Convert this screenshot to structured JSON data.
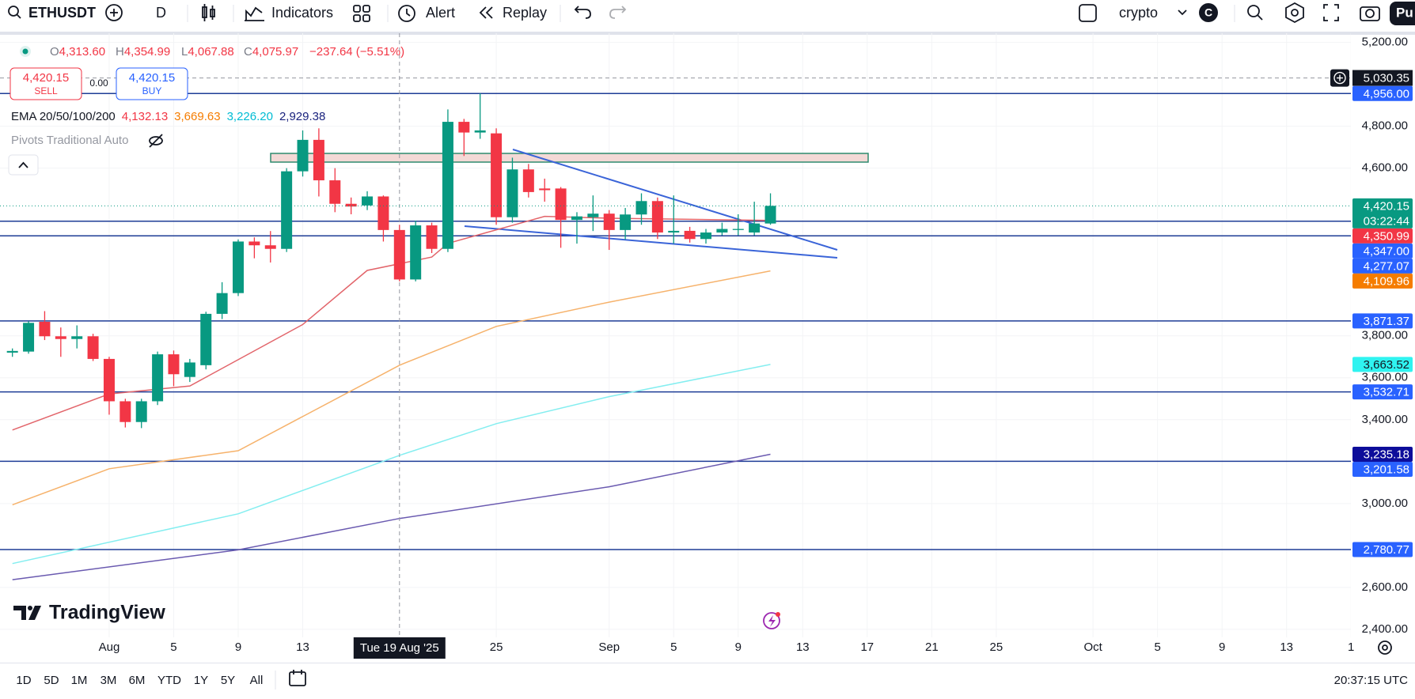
{
  "toolbar": {
    "symbol": "ETHUSDT",
    "interval": "D",
    "indicators": "Indicators",
    "alert": "Alert",
    "replay": "Replay",
    "layout": "crypto",
    "avatar": "C",
    "publish": "Pu"
  },
  "legend": {
    "ohlc": [
      {
        "key": "O",
        "value": "4,313.60"
      },
      {
        "key": "H",
        "value": "4,354.99"
      },
      {
        "key": "L",
        "value": "4,067.88"
      },
      {
        "key": "C",
        "value": "4,075.97"
      }
    ],
    "change": "−237.64 (−5.51%)",
    "sell": {
      "price": "4,420.15",
      "label": "SELL"
    },
    "spread": "0.00",
    "buy": {
      "price": "4,420.15",
      "label": "BUY"
    },
    "ema": {
      "label": "EMA 20/50/100/200",
      "values": [
        {
          "text": "4,132.13",
          "color": "#f23645"
        },
        {
          "text": "3,669.63",
          "color": "#f57c00"
        },
        {
          "text": "3,226.20",
          "color": "#00bcd4"
        },
        {
          "text": "2,929.38",
          "color": "#1a237e"
        }
      ]
    },
    "pivots": "Pivots Traditional Auto"
  },
  "logo": "TradingView",
  "chart_data": {
    "type": "candlestick",
    "x": [
      "2025-07-26",
      "2025-07-27",
      "2025-07-28",
      "2025-07-29",
      "2025-07-30",
      "2025-07-31",
      "2025-08-01",
      "2025-08-02",
      "2025-08-03",
      "2025-08-04",
      "2025-08-05",
      "2025-08-06",
      "2025-08-07",
      "2025-08-08",
      "2025-08-09",
      "2025-08-10",
      "2025-08-11",
      "2025-08-12",
      "2025-08-13",
      "2025-08-14",
      "2025-08-15",
      "2025-08-16",
      "2025-08-17",
      "2025-08-18",
      "2025-08-19",
      "2025-08-20",
      "2025-08-21",
      "2025-08-22",
      "2025-08-23",
      "2025-08-24",
      "2025-08-25",
      "2025-08-26",
      "2025-08-27",
      "2025-08-28",
      "2025-08-29",
      "2025-08-30",
      "2025-08-31",
      "2025-09-01",
      "2025-09-02",
      "2025-09-03",
      "2025-09-04",
      "2025-09-05",
      "2025-09-06",
      "2025-09-07",
      "2025-09-08",
      "2025-09-09",
      "2025-09-10",
      "2025-09-11"
    ],
    "open": [
      3720,
      3725,
      3867,
      3798,
      3785,
      3798,
      3690,
      3488,
      3389,
      3488,
      3712,
      3604,
      3660,
      3905,
      4004,
      4250,
      4232,
      4215,
      4585,
      4735,
      4542,
      4430,
      4422,
      4465,
      4305,
      4069,
      4327,
      4215,
      4821,
      4770,
      4766,
      4366,
      4594,
      4503,
      4503,
      4353,
      4366,
      4383,
      4305,
      4379,
      4443,
      4293,
      4301,
      4262,
      4293,
      4305,
      4293,
      4336
    ],
    "high": [
      3740,
      3870,
      3918,
      3840,
      3850,
      3810,
      3700,
      3500,
      3500,
      3725,
      3730,
      3690,
      3915,
      4056,
      4260,
      4270,
      4300,
      4600,
      4780,
      4790,
      4600,
      4460,
      4490,
      4470,
      4330,
      4350,
      4340,
      4880,
      4835,
      4956,
      4790,
      4650,
      4620,
      4550,
      4510,
      4390,
      4470,
      4400,
      4410,
      4480,
      4460,
      4470,
      4320,
      4310,
      4340,
      4380,
      4440,
      4480
    ],
    "low": [
      3700,
      3715,
      3780,
      3700,
      3740,
      3680,
      3424,
      3363,
      3360,
      3470,
      3560,
      3580,
      3640,
      3880,
      3990,
      4170,
      4150,
      4200,
      4560,
      4465,
      4390,
      4380,
      4400,
      4250,
      4060,
      4060,
      4195,
      4200,
      4658,
      4740,
      4330,
      4340,
      4460,
      4440,
      4220,
      4240,
      4300,
      4210,
      4260,
      4330,
      4262,
      4240,
      4245,
      4240,
      4280,
      4280,
      4280,
      4330
    ],
    "close": [
      3728,
      3862,
      3798,
      3785,
      3798,
      3690,
      3488,
      3389,
      3488,
      3712,
      3617,
      3673,
      3905,
      4004,
      4250,
      4232,
      4215,
      4585,
      4735,
      4542,
      4430,
      4417,
      4465,
      4305,
      4069,
      4327,
      4215,
      4821,
      4770,
      4780,
      4366,
      4594,
      4486,
      4495,
      4353,
      4370,
      4383,
      4305,
      4379,
      4443,
      4293,
      4301,
      4262,
      4293,
      4310,
      4310,
      4336,
      4420.15
    ],
    "up_color": "#089981",
    "down_color": "#f23645",
    "xlim": [
      "2025-07-25",
      "2025-10-18"
    ],
    "ylim": [
      2400,
      5200
    ],
    "xticks": [
      {
        "value": "2025-08-01",
        "label": "Aug"
      },
      {
        "value": "2025-08-05",
        "label": "5"
      },
      {
        "value": "2025-08-09",
        "label": "9"
      },
      {
        "value": "2025-08-13",
        "label": "13"
      },
      {
        "value": "2025-08-25",
        "label": "25"
      },
      {
        "value": "2025-09-01",
        "label": "Sep"
      },
      {
        "value": "2025-09-05",
        "label": "5"
      },
      {
        "value": "2025-09-09",
        "label": "9"
      },
      {
        "value": "2025-09-13",
        "label": "13"
      },
      {
        "value": "2025-09-17",
        "label": "17"
      },
      {
        "value": "2025-09-21",
        "label": "21"
      },
      {
        "value": "2025-09-25",
        "label": "25"
      },
      {
        "value": "2025-10-01",
        "label": "Oct"
      },
      {
        "value": "2025-10-05",
        "label": "5"
      },
      {
        "value": "2025-10-09",
        "label": "9"
      },
      {
        "value": "2025-10-13",
        "label": "13"
      },
      {
        "value": "2025-10-17",
        "label": "1"
      }
    ],
    "yticks": [
      {
        "value": 5200,
        "label": "5,200.00"
      },
      {
        "value": 4800,
        "label": "4,800.00"
      },
      {
        "value": 4600,
        "label": "4,600.00"
      },
      {
        "value": 3800,
        "label": "3,800.00"
      },
      {
        "value": 3600,
        "label": "3,600.00"
      },
      {
        "value": 3400,
        "label": "3,400.00"
      },
      {
        "value": 3000,
        "label": "3,000.00"
      },
      {
        "value": 2600,
        "label": "2,600.00"
      },
      {
        "value": 2400,
        "label": "2,400.00"
      }
    ],
    "crosshair": {
      "x": {
        "value": "2025-08-19",
        "label": "Tue 19 Aug '25"
      },
      "y": {
        "value": 5030.35,
        "label": "5,030.35"
      }
    },
    "levels": [
      4956,
      4347,
      4277.07,
      3871.37,
      3532.71,
      3201.58,
      2780.77
    ],
    "level_color": "#1e3c96",
    "ema": [
      {
        "color": "#e2646a",
        "x": [
          "2025-07-26",
          "2025-08-01",
          "2025-08-06",
          "2025-08-13",
          "2025-08-17",
          "2025-08-21",
          "2025-08-22",
          "2025-08-28",
          "2025-09-01",
          "2025-09-11"
        ],
        "values": [
          3351,
          3523,
          3561,
          3854,
          4112,
          4176,
          4241,
          4370,
          4361,
          4350.99
        ]
      },
      {
        "color": "#f6b26b",
        "x": [
          "2025-07-26",
          "2025-08-01",
          "2025-08-09",
          "2025-08-19",
          "2025-08-25",
          "2025-09-01",
          "2025-09-11"
        ],
        "values": [
          2994,
          3166,
          3252,
          3660,
          3845,
          3961,
          4109.96
        ]
      },
      {
        "color": "#84eef0",
        "x": [
          "2025-07-26",
          "2025-08-09",
          "2025-08-19",
          "2025-08-25",
          "2025-09-01",
          "2025-09-11"
        ],
        "values": [
          2714,
          2951,
          3230,
          3381,
          3510,
          3663.52
        ]
      },
      {
        "color": "#6a5ab0",
        "x": [
          "2025-07-26",
          "2025-08-09",
          "2025-08-19",
          "2025-09-01",
          "2025-09-11"
        ],
        "values": [
          2637,
          2779,
          2929,
          3080,
          3235.18
        ]
      }
    ],
    "badges": [
      {
        "value": 4956,
        "label": "4,956.00",
        "color": "#2962ff",
        "text_color": "#ffffff"
      },
      {
        "value": 4420.15,
        "label": "4,420.15",
        "sub": "03:22:44",
        "color": "#089981",
        "text_color": "#ffffff",
        "dotted": true
      },
      {
        "value": 4350.99,
        "label": "4,350.99",
        "color": "#f23645",
        "text_color": "#ffffff"
      },
      {
        "value": 4347,
        "label": "4,347.00",
        "color": "#2962ff",
        "text_color": "#ffffff"
      },
      {
        "value": 4277.07,
        "label": "4,277.07",
        "color": "#2962ff",
        "text_color": "#ffffff"
      },
      {
        "value": 4109.96,
        "label": "4,109.96",
        "color": "#f57c00",
        "text_color": "#ffffff"
      },
      {
        "value": 3871.37,
        "label": "3,871.37",
        "color": "#2962ff",
        "text_color": "#ffffff"
      },
      {
        "value": 3663.52,
        "label": "3,663.52",
        "color": "#2ff3f0",
        "text_color": "#131722"
      },
      {
        "value": 3532.71,
        "label": "3,532.71",
        "color": "#2962ff",
        "text_color": "#ffffff"
      },
      {
        "value": 3235.18,
        "label": "3,235.18",
        "color": "#0d0d9a",
        "text_color": "#ffffff"
      },
      {
        "value": 3201.58,
        "label": "3,201.58",
        "color": "#2962ff",
        "text_color": "#ffffff"
      },
      {
        "value": 2780.77,
        "label": "2,780.77",
        "color": "#2962ff",
        "text_color": "#ffffff"
      }
    ]
  },
  "bottom_bar": {
    "ranges": [
      "1D",
      "5D",
      "1M",
      "3M",
      "6M",
      "YTD",
      "1Y",
      "5Y",
      "All"
    ],
    "clock": "20:37:15 UTC"
  }
}
